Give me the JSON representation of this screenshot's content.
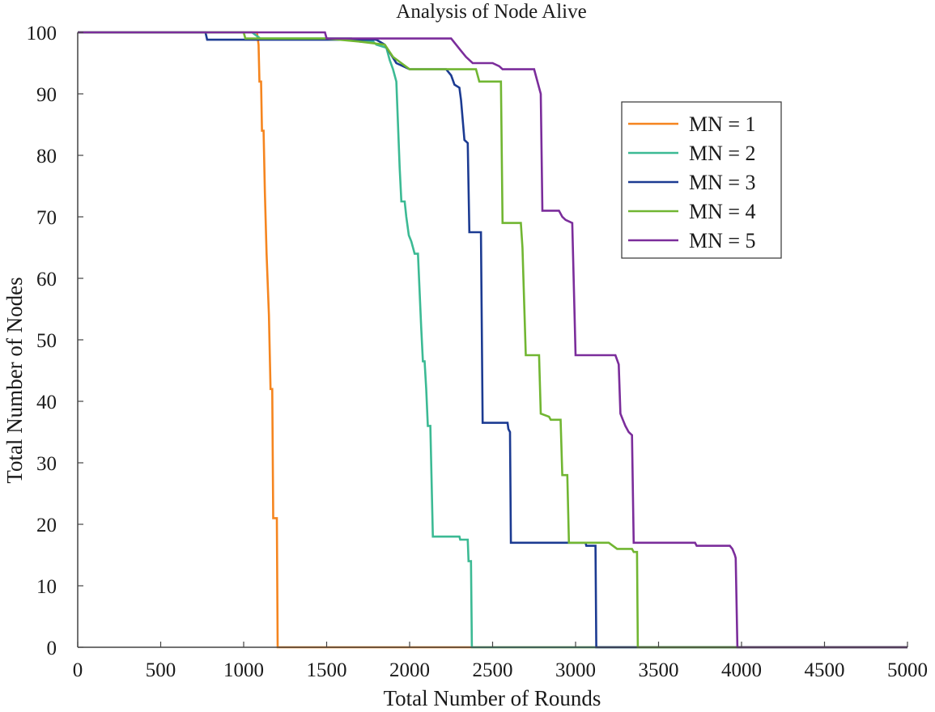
{
  "chart_data": {
    "type": "line",
    "title": "Analysis of Node Alive",
    "xlabel": "Total Number of Rounds",
    "ylabel": "Total Number of Nodes",
    "xlim": [
      0,
      5000
    ],
    "ylim": [
      0,
      100
    ],
    "xticks": [
      0,
      500,
      1000,
      1500,
      2000,
      2500,
      3000,
      3500,
      4000,
      4500,
      5000
    ],
    "yticks": [
      0,
      10,
      20,
      30,
      40,
      50,
      60,
      70,
      80,
      90,
      100
    ],
    "grid": false,
    "legend_position": "upper-right",
    "series": [
      {
        "name": "MN = 1",
        "color": "#f5851f",
        "points": [
          [
            0,
            100
          ],
          [
            1080,
            100
          ],
          [
            1090,
            98
          ],
          [
            1095,
            92
          ],
          [
            1105,
            92
          ],
          [
            1110,
            84
          ],
          [
            1120,
            84
          ],
          [
            1128,
            74
          ],
          [
            1138,
            64
          ],
          [
            1152,
            54
          ],
          [
            1162,
            42
          ],
          [
            1172,
            42
          ],
          [
            1178,
            21
          ],
          [
            1200,
            21
          ],
          [
            1205,
            0
          ],
          [
            5000,
            0
          ]
        ]
      },
      {
        "name": "MN = 2",
        "color": "#3cba94",
        "points": [
          [
            0,
            100
          ],
          [
            1050,
            100
          ],
          [
            1100,
            99
          ],
          [
            1650,
            99
          ],
          [
            1700,
            98.5
          ],
          [
            1780,
            98.5
          ],
          [
            1800,
            98
          ],
          [
            1860,
            97.5
          ],
          [
            1880,
            95.5
          ],
          [
            1900,
            94
          ],
          [
            1920,
            92
          ],
          [
            1940,
            78
          ],
          [
            1950,
            72.5
          ],
          [
            1970,
            72.5
          ],
          [
            1980,
            70
          ],
          [
            1995,
            67
          ],
          [
            2010,
            66
          ],
          [
            2030,
            64
          ],
          [
            2050,
            64
          ],
          [
            2060,
            58
          ],
          [
            2070,
            52
          ],
          [
            2080,
            46.5
          ],
          [
            2090,
            46.5
          ],
          [
            2100,
            42
          ],
          [
            2110,
            36
          ],
          [
            2125,
            36
          ],
          [
            2140,
            18
          ],
          [
            2300,
            18
          ],
          [
            2305,
            17.5
          ],
          [
            2350,
            17.5
          ],
          [
            2355,
            14
          ],
          [
            2370,
            14
          ],
          [
            2375,
            0
          ],
          [
            5000,
            0
          ]
        ]
      },
      {
        "name": "MN = 3",
        "color": "#1c3b92",
        "points": [
          [
            0,
            100
          ],
          [
            770,
            100
          ],
          [
            780,
            98.8
          ],
          [
            1800,
            98.8
          ],
          [
            1850,
            98
          ],
          [
            1920,
            95
          ],
          [
            2000,
            94
          ],
          [
            2220,
            94
          ],
          [
            2250,
            93
          ],
          [
            2270,
            91.5
          ],
          [
            2300,
            91
          ],
          [
            2310,
            89
          ],
          [
            2330,
            82.5
          ],
          [
            2350,
            82
          ],
          [
            2360,
            67.5
          ],
          [
            2430,
            67.5
          ],
          [
            2440,
            36.5
          ],
          [
            2590,
            36.5
          ],
          [
            2595,
            35.5
          ],
          [
            2605,
            35
          ],
          [
            2610,
            17
          ],
          [
            3060,
            17
          ],
          [
            3065,
            16.5
          ],
          [
            3120,
            16.5
          ],
          [
            3125,
            0
          ],
          [
            5000,
            0
          ]
        ]
      },
      {
        "name": "MN = 4",
        "color": "#71b632",
        "points": [
          [
            0,
            100
          ],
          [
            1000,
            100
          ],
          [
            1010,
            99
          ],
          [
            1500,
            99
          ],
          [
            1700,
            98.5
          ],
          [
            1850,
            98
          ],
          [
            1900,
            96
          ],
          [
            1950,
            95
          ],
          [
            2000,
            94
          ],
          [
            2400,
            94
          ],
          [
            2420,
            92
          ],
          [
            2550,
            92
          ],
          [
            2560,
            69
          ],
          [
            2670,
            69
          ],
          [
            2680,
            65
          ],
          [
            2700,
            47.5
          ],
          [
            2780,
            47.5
          ],
          [
            2790,
            38
          ],
          [
            2840,
            37.5
          ],
          [
            2850,
            37
          ],
          [
            2910,
            37
          ],
          [
            2920,
            28
          ],
          [
            2950,
            28
          ],
          [
            2960,
            17
          ],
          [
            3200,
            17
          ],
          [
            3250,
            16
          ],
          [
            3340,
            16
          ],
          [
            3350,
            15.5
          ],
          [
            3370,
            15.5
          ],
          [
            3375,
            0
          ],
          [
            5000,
            0
          ]
        ]
      },
      {
        "name": "MN = 5",
        "color": "#7b2d9b",
        "points": [
          [
            0,
            100
          ],
          [
            1490,
            100
          ],
          [
            1500,
            99
          ],
          [
            2250,
            99
          ],
          [
            2280,
            98
          ],
          [
            2310,
            97
          ],
          [
            2340,
            96
          ],
          [
            2380,
            95
          ],
          [
            2500,
            95
          ],
          [
            2540,
            94.5
          ],
          [
            2560,
            94
          ],
          [
            2750,
            94
          ],
          [
            2770,
            92
          ],
          [
            2790,
            90
          ],
          [
            2800,
            71
          ],
          [
            2900,
            71
          ],
          [
            2920,
            70
          ],
          [
            2940,
            69.5
          ],
          [
            2980,
            69
          ],
          [
            3000,
            47.5
          ],
          [
            3240,
            47.5
          ],
          [
            3260,
            46
          ],
          [
            3270,
            38
          ],
          [
            3285,
            37
          ],
          [
            3300,
            36
          ],
          [
            3320,
            35
          ],
          [
            3340,
            34.5
          ],
          [
            3350,
            17
          ],
          [
            3720,
            17
          ],
          [
            3730,
            16.5
          ],
          [
            3930,
            16.5
          ],
          [
            3945,
            16
          ],
          [
            3960,
            15
          ],
          [
            3965,
            14.5
          ],
          [
            3975,
            0
          ],
          [
            5000,
            0
          ]
        ]
      }
    ]
  }
}
